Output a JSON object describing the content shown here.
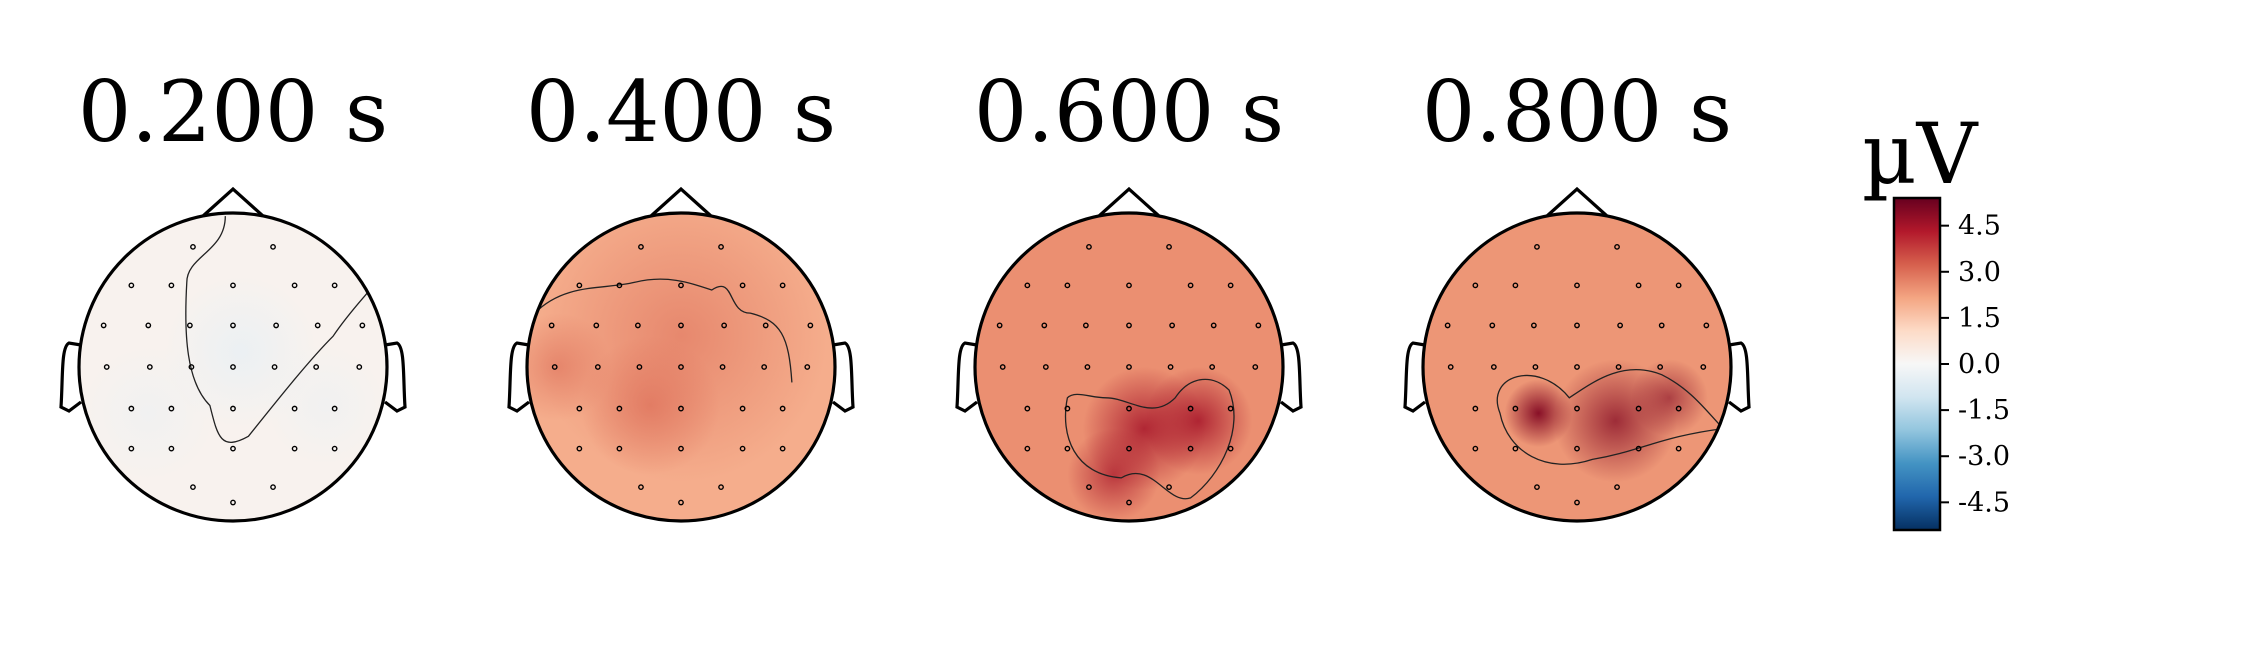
{
  "chart_data": {
    "type": "heatmap",
    "subtype": "topomap",
    "panels": [
      {
        "title": "0.200 s",
        "mean_uV": 0.2
      },
      {
        "title": "0.400 s",
        "mean_uV": 2.0
      },
      {
        "title": "0.600 s",
        "mean_uV": 2.5
      },
      {
        "title": "0.800 s",
        "mean_uV": 2.4
      }
    ],
    "colorbar": {
      "title": "µV",
      "ticks": [
        "4.5",
        "3.0",
        "1.5",
        "0.0",
        "-1.5",
        "-3.0",
        "-4.5"
      ],
      "tick_values": [
        4.5,
        3.0,
        1.5,
        0.0,
        -1.5,
        -3.0,
        -4.5
      ],
      "range": [
        -5.4,
        5.4
      ],
      "colormap": "RdBu_r",
      "colors": [
        "#053061",
        "#2166ac",
        "#4393c3",
        "#92c5de",
        "#d1e5f0",
        "#f7f7f7",
        "#fddbc7",
        "#f4a582",
        "#d6604d",
        "#b2182b",
        "#67001f"
      ]
    }
  }
}
